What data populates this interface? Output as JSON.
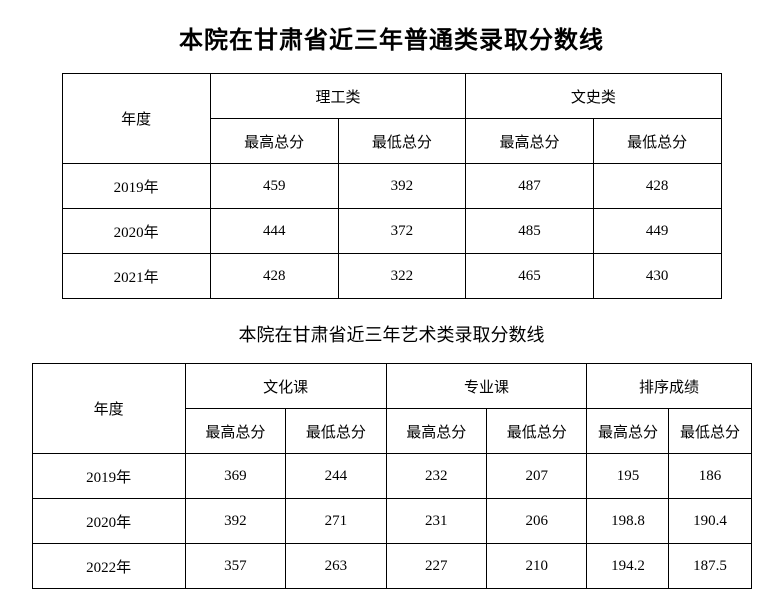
{
  "titles": {
    "main": "本院在甘肃省近三年普通类录取分数线",
    "sub": "本院在甘肃省近三年艺术类录取分数线"
  },
  "table1": {
    "headers": {
      "year": "年度",
      "group1": "理工类",
      "group2": "文史类",
      "max": "最高总分",
      "min": "最低总分"
    },
    "rows": [
      {
        "year": "2019年",
        "g1_max": "459",
        "g1_min": "392",
        "g2_max": "487",
        "g2_min": "428"
      },
      {
        "year": "2020年",
        "g1_max": "444",
        "g1_min": "372",
        "g2_max": "485",
        "g2_min": "449"
      },
      {
        "year": "2021年",
        "g1_max": "428",
        "g1_min": "322",
        "g2_max": "465",
        "g2_min": "430"
      }
    ]
  },
  "table2": {
    "headers": {
      "year": "年度",
      "group1": "文化课",
      "group2": "专业课",
      "group3": "排序成绩",
      "max": "最高总分",
      "min": "最低总分"
    },
    "rows": [
      {
        "year": "2019年",
        "g1_max": "369",
        "g1_min": "244",
        "g2_max": "232",
        "g2_min": "207",
        "g3_max": "195",
        "g3_min": "186"
      },
      {
        "year": "2020年",
        "g1_max": "392",
        "g1_min": "271",
        "g2_max": "231",
        "g2_min": "206",
        "g3_max": "198.8",
        "g3_min": "190.4"
      },
      {
        "year": "2022年",
        "g1_max": "357",
        "g1_min": "263",
        "g2_max": "227",
        "g2_min": "210",
        "g3_max": "194.2",
        "g3_min": "187.5"
      }
    ]
  }
}
